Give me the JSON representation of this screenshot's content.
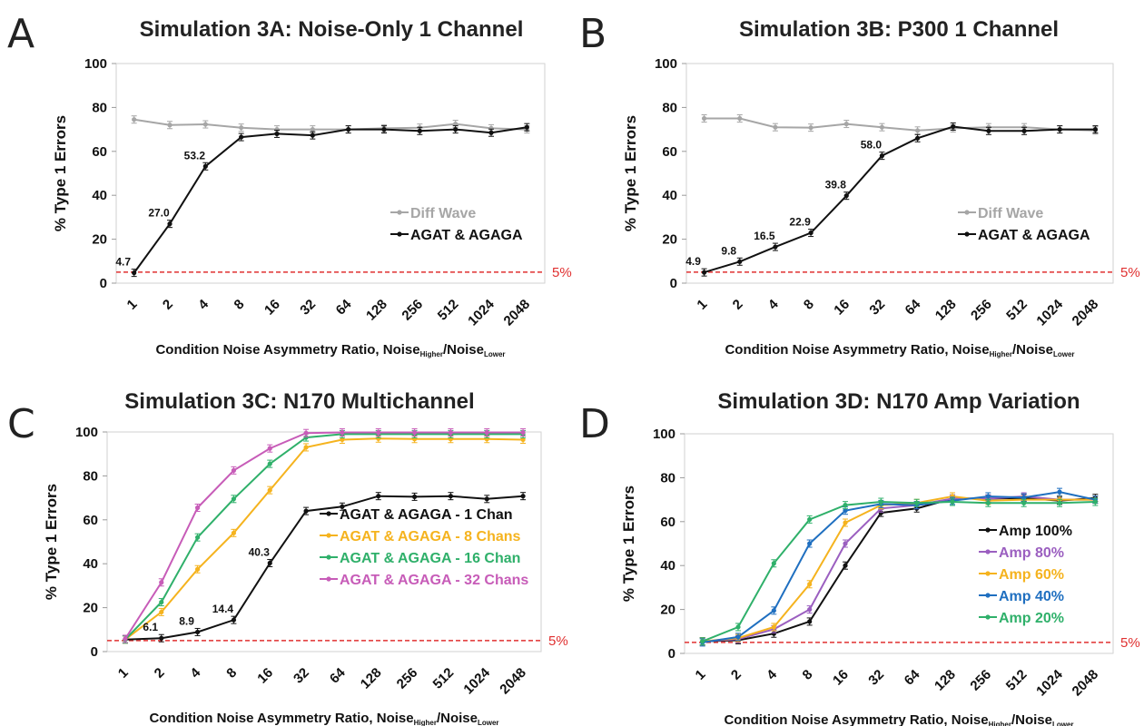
{
  "x_axis_label_prefix": "Condition Noise Asymmetry Ratio, Noise",
  "x_axis_label_sub_higher": "Higher",
  "x_axis_label_sep": "/Noise",
  "x_axis_label_sub_lower": "Lower",
  "y_axis_label": "% Type 1 Errors",
  "reference_label": "5%",
  "colors": {
    "black": "#111111",
    "gray": "#a6a6a6",
    "orange": "#f5b31e",
    "green": "#2fb06a",
    "pink": "#c75cb8",
    "purple": "#9b5fc0",
    "blue": "#1f6fc0",
    "ref": "#e03030"
  },
  "chart_data": [
    {
      "panel": "A",
      "type": "line",
      "title": "Simulation 3A: Noise-Only 1 Channel",
      "categories": [
        "1",
        "2",
        "4",
        "8",
        "16",
        "32",
        "64",
        "128",
        "256",
        "512",
        "1024",
        "2048"
      ],
      "ylim": [
        0,
        100
      ],
      "yticks": [
        0,
        20,
        40,
        60,
        80,
        100
      ],
      "reference_line": 5,
      "legend_position": "center-right",
      "series": [
        {
          "name": "Diff Wave",
          "color": "gray",
          "values": [
            74.5,
            72,
            72.3,
            70.8,
            70,
            70,
            70,
            70.5,
            70.8,
            72.5,
            70.5,
            70
          ]
        },
        {
          "name": "AGAT & AGAGA",
          "color": "black",
          "values": [
            4.7,
            27.0,
            53.2,
            66.5,
            68,
            67.3,
            70,
            70,
            69.3,
            70,
            68.5,
            71
          ]
        }
      ],
      "data_labels": [
        {
          "series": 1,
          "index": 0,
          "text": "4.7"
        },
        {
          "series": 1,
          "index": 1,
          "text": "27.0"
        },
        {
          "series": 1,
          "index": 2,
          "text": "53.2"
        }
      ]
    },
    {
      "panel": "B",
      "type": "line",
      "title": "Simulation 3B: P300 1 Channel",
      "categories": [
        "1",
        "2",
        "4",
        "8",
        "16",
        "32",
        "64",
        "128",
        "256",
        "512",
        "1024",
        "2048"
      ],
      "ylim": [
        0,
        100
      ],
      "yticks": [
        0,
        20,
        40,
        60,
        80,
        100
      ],
      "reference_line": 5,
      "legend_position": "center-right",
      "series": [
        {
          "name": "Diff Wave",
          "color": "gray",
          "values": [
            75,
            75,
            71,
            70.8,
            72.5,
            71,
            69.5,
            70.5,
            71,
            71,
            70,
            69.5
          ]
        },
        {
          "name": "AGAT & AGAGA",
          "color": "black",
          "values": [
            4.9,
            9.8,
            16.5,
            22.9,
            39.8,
            58.0,
            66,
            71.3,
            69.3,
            69.3,
            70,
            70
          ]
        }
      ],
      "data_labels": [
        {
          "series": 1,
          "index": 0,
          "text": "4.9"
        },
        {
          "series": 1,
          "index": 1,
          "text": "9.8"
        },
        {
          "series": 1,
          "index": 2,
          "text": "16.5"
        },
        {
          "series": 1,
          "index": 3,
          "text": "22.9"
        },
        {
          "series": 1,
          "index": 4,
          "text": "39.8"
        },
        {
          "series": 1,
          "index": 5,
          "text": "58.0"
        }
      ]
    },
    {
      "panel": "C",
      "type": "line",
      "title": "Simulation 3C: N170 Multichannel",
      "categories": [
        "1",
        "2",
        "4",
        "8",
        "16",
        "32",
        "64",
        "128",
        "256",
        "512",
        "1024",
        "2048"
      ],
      "ylim": [
        0,
        100
      ],
      "yticks": [
        0,
        20,
        40,
        60,
        80,
        100
      ],
      "reference_line": 5,
      "legend_position": "center-right",
      "series": [
        {
          "name": "AGAT & AGAGA - 1 Chan",
          "color": "black",
          "values": [
            5.5,
            6.1,
            8.9,
            14.4,
            40.3,
            64,
            66,
            70.8,
            70.5,
            70.8,
            69.5,
            70.8
          ]
        },
        {
          "name": "AGAT & AGAGA - 8 Chans",
          "color": "orange",
          "values": [
            5.5,
            18,
            37.5,
            54,
            73.5,
            93,
            96.5,
            97,
            96.8,
            96.8,
            96.8,
            96.5
          ]
        },
        {
          "name": "AGAT & AGAGA - 16 Chan",
          "color": "green",
          "values": [
            5.5,
            22.5,
            52,
            69.5,
            85.5,
            97.5,
            99,
            99,
            99,
            99,
            99,
            99
          ]
        },
        {
          "name": "AGAT & AGAGA - 32 Chans",
          "color": "pink",
          "values": [
            5.8,
            31.5,
            65.5,
            82.5,
            92.5,
            99.5,
            99.8,
            99.8,
            99.8,
            99.8,
            99.8,
            99.8
          ]
        }
      ],
      "data_labels": [
        {
          "series": 0,
          "index": 1,
          "text": "6.1"
        },
        {
          "series": 0,
          "index": 2,
          "text": "8.9"
        },
        {
          "series": 0,
          "index": 3,
          "text": "14.4"
        },
        {
          "series": 0,
          "index": 4,
          "text": "40.3"
        }
      ]
    },
    {
      "panel": "D",
      "type": "line",
      "title": "Simulation 3D: N170 Amp Variation",
      "categories": [
        "1",
        "2",
        "4",
        "8",
        "16",
        "32",
        "64",
        "128",
        "256",
        "512",
        "1024",
        "2048"
      ],
      "ylim": [
        0,
        100
      ],
      "yticks": [
        0,
        20,
        40,
        60,
        80,
        100
      ],
      "reference_line": 5,
      "legend_position": "center-right",
      "series": [
        {
          "name": "Amp 100%",
          "color": "black",
          "values": [
            5.5,
            6,
            9,
            14.5,
            40,
            64,
            66,
            70.5,
            70.5,
            70.8,
            69.5,
            70.8
          ]
        },
        {
          "name": "Amp 80%",
          "color": "purple",
          "values": [
            5.5,
            6.5,
            11,
            20,
            50,
            66,
            67.5,
            70.5,
            70.5,
            71.5,
            70,
            70
          ]
        },
        {
          "name": "Amp 60%",
          "color": "orange",
          "values": [
            5.5,
            7,
            12,
            31.5,
            59.5,
            67.5,
            68.5,
            71.5,
            69.5,
            70,
            70,
            70
          ]
        },
        {
          "name": "Amp 40%",
          "color": "blue",
          "values": [
            5,
            7.5,
            19.5,
            50,
            65,
            68,
            67.5,
            69.5,
            71.5,
            71,
            73.5,
            70
          ]
        },
        {
          "name": "Amp 20%",
          "color": "green",
          "values": [
            5.5,
            12,
            41,
            61,
            67.5,
            69,
            68.5,
            69,
            68.5,
            68.5,
            68.5,
            69
          ]
        }
      ],
      "data_labels": []
    }
  ]
}
